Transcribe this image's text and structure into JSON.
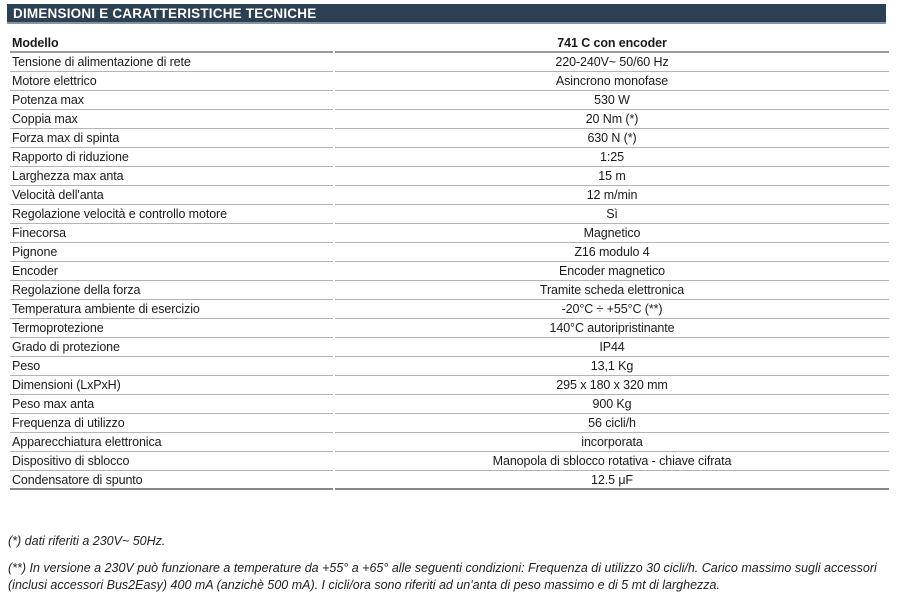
{
  "page": {
    "section_title": "DIMENSIONI E CARATTERISTICHE TECNICHE"
  },
  "colors": {
    "section_bar_bg": "#2b4052",
    "section_bar_underline": "#8795a1",
    "header_row_border": "#9b9b9b",
    "row_divider": "#b4b4b4",
    "table_bottom_border": "#878787",
    "text": "#1b1b1b",
    "title_text": "#ffffff"
  },
  "table": {
    "header": {
      "label": "Modello",
      "value": "741 C con encoder"
    },
    "rows": [
      {
        "label": "Tensione di alimentazione di rete",
        "value": "220-240V~ 50/60 Hz"
      },
      {
        "label": "Motore elettrico",
        "value": "Asincrono monofase"
      },
      {
        "label": "Potenza max",
        "value": "530 W"
      },
      {
        "label": "Coppia max",
        "value": "20 Nm (*)"
      },
      {
        "label": "Forza max di spinta",
        "value": "630 N (*)"
      },
      {
        "label": "Rapporto di riduzione",
        "value": "1:25"
      },
      {
        "label": "Larghezza max anta",
        "value": "15 m"
      },
      {
        "label": "Velocità dell'anta",
        "value": "12 m/min"
      },
      {
        "label": "Regolazione velocità e controllo motore",
        "value": "Sì"
      },
      {
        "label": "Finecorsa",
        "value": "Magnetico"
      },
      {
        "label": "Pignone",
        "value": "Z16 modulo 4"
      },
      {
        "label": "Encoder",
        "value": "Encoder magnetico"
      },
      {
        "label": "Regolazione della forza",
        "value": "Tramite scheda elettronica"
      },
      {
        "label": "Temperatura ambiente di esercizio",
        "value": "-20°C ÷ +55°C (**)"
      },
      {
        "label": "Termoprotezione",
        "value": "140°C autoripristinante"
      },
      {
        "label": "Grado di protezione",
        "value": "IP44"
      },
      {
        "label": "Peso",
        "value": "13,1 Kg"
      },
      {
        "label": "Dimensioni (LxPxH)",
        "value": "295 x 180 x 320 mm"
      },
      {
        "label": "Peso max anta",
        "value": "900 Kg"
      },
      {
        "label": "Frequenza di utilizzo",
        "value": "56 cicli/h"
      },
      {
        "label": "Apparecchiatura elettronica",
        "value": "incorporata"
      },
      {
        "label": "Dispositivo di sblocco",
        "value": "Manopola di sblocco rotativa - chiave cifrata"
      },
      {
        "label": "Condensatore di spunto",
        "value": "12.5 μF"
      }
    ]
  },
  "footnotes": {
    "note1": "(*) dati riferiti a 230V~ 50Hz.",
    "note2": "(**) In versione a 230V può funzionare a temperature da +55° a +65° alle seguenti condizioni:  Frequenza di utilizzo 30 cicli/h. Carico massimo sugli accessori (inclusi accessori Bus2Easy) 400 mA (anzichè 500 mA). I cicli/ora sono riferiti ad un'anta di peso massimo e di 5 mt di larghezza."
  }
}
